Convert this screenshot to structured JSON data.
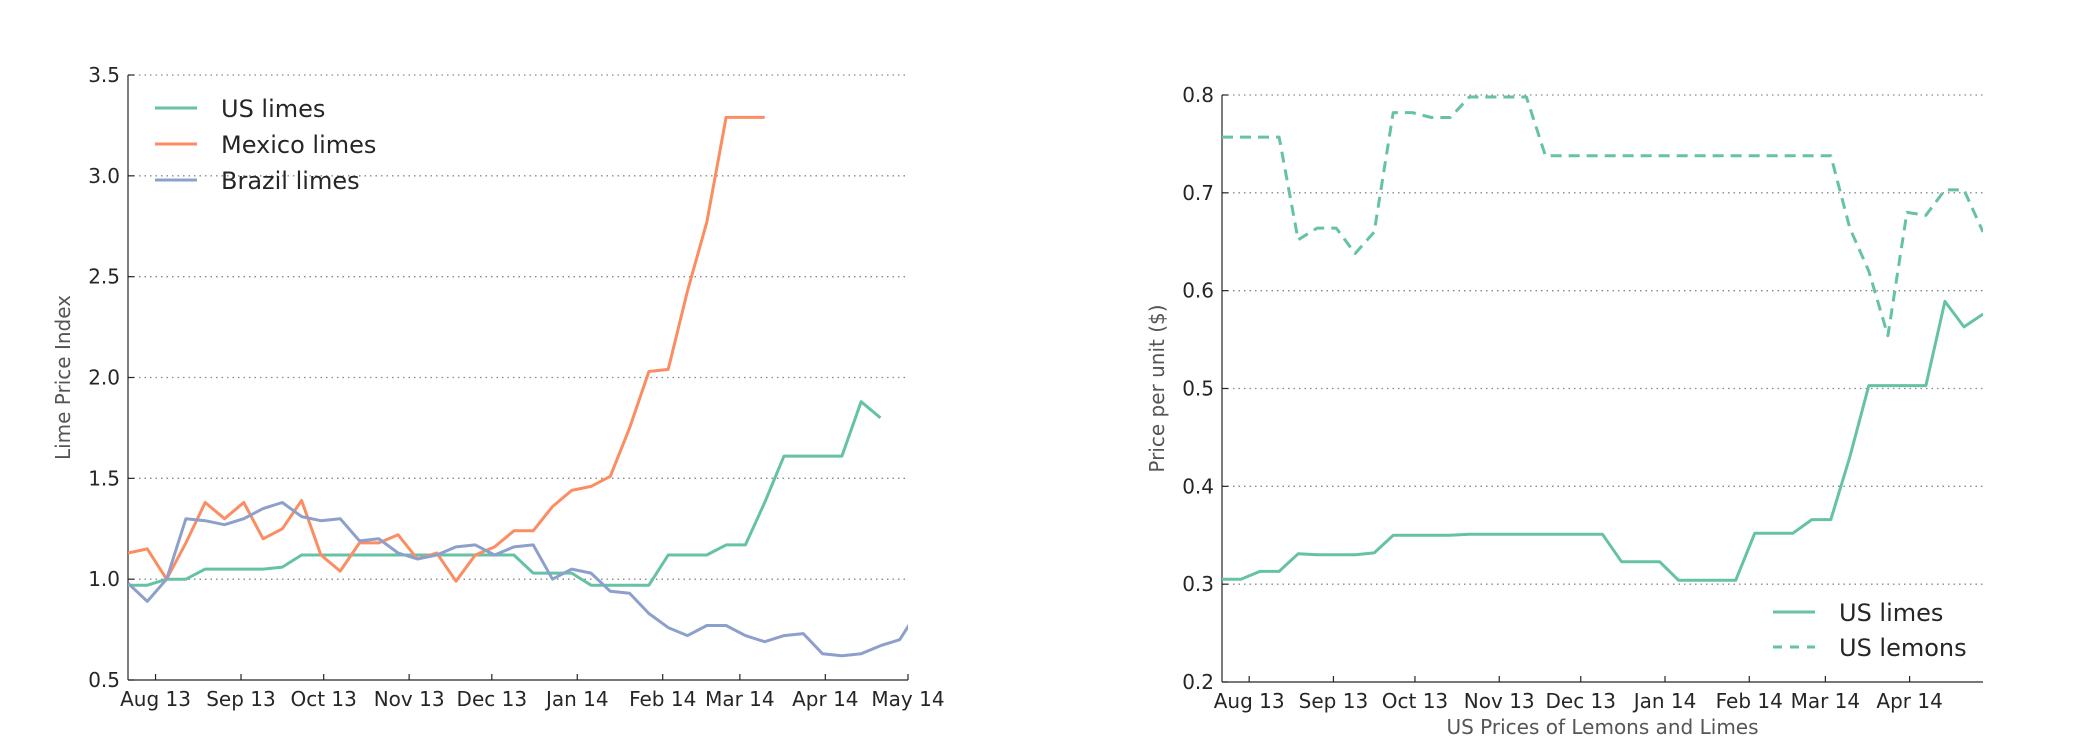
{
  "figure": {
    "background": "#ffffff"
  },
  "colors": {
    "green": "#66c2a5",
    "orange": "#fc8d62",
    "blue": "#8da0cb",
    "grid": "#888888",
    "axis": "#262626"
  },
  "chart_data": [
    {
      "type": "line",
      "title": "",
      "xlabel": "",
      "ylabel": "Lime Price Index",
      "ylim": [
        0.5,
        3.5
      ],
      "yticks": [
        0.5,
        1.0,
        1.5,
        2.0,
        2.5,
        3.0,
        3.5
      ],
      "ytick_labels": [
        "0.5",
        "1.0",
        "1.5",
        "2.0",
        "2.5",
        "3.0",
        "3.5"
      ],
      "xlim": [
        "2013-07-22",
        "2014-05-01"
      ],
      "xticks": [
        "2013-08-01",
        "2013-09-01",
        "2013-10-01",
        "2013-11-01",
        "2013-12-01",
        "2014-01-01",
        "2014-02-01",
        "2014-03-01",
        "2014-04-01",
        "2014-05-01"
      ],
      "xtick_labels": [
        "Aug 13",
        "Sep 13",
        "Oct 13",
        "Nov 13",
        "Dec 13",
        "Jan 14",
        "Feb 14",
        "Mar 14",
        "Apr 14",
        "May 14"
      ],
      "grid": "horizontal-dotted",
      "legend": "top-left",
      "series": [
        {
          "name": "US limes",
          "color": "#66c2a5",
          "dash": "solid",
          "x": [
            "2013-07-22",
            "2013-07-29",
            "2013-08-05",
            "2013-08-12",
            "2013-08-19",
            "2013-08-26",
            "2013-09-02",
            "2013-09-09",
            "2013-09-16",
            "2013-09-23",
            "2013-09-30",
            "2013-10-07",
            "2013-10-14",
            "2013-10-21",
            "2013-10-28",
            "2013-11-04",
            "2013-11-11",
            "2013-11-18",
            "2013-11-25",
            "2013-12-02",
            "2013-12-09",
            "2013-12-16",
            "2013-12-23",
            "2013-12-30",
            "2014-01-06",
            "2014-01-13",
            "2014-01-20",
            "2014-01-27",
            "2014-02-03",
            "2014-02-10",
            "2014-02-17",
            "2014-02-24",
            "2014-03-03",
            "2014-03-10",
            "2014-03-17",
            "2014-03-24",
            "2014-03-31",
            "2014-04-07",
            "2014-04-14",
            "2014-04-21"
          ],
          "y": [
            0.97,
            0.97,
            1.0,
            1.0,
            1.05,
            1.05,
            1.05,
            1.05,
            1.06,
            1.12,
            1.12,
            1.12,
            1.12,
            1.12,
            1.12,
            1.12,
            1.12,
            1.12,
            1.12,
            1.12,
            1.12,
            1.03,
            1.03,
            1.03,
            0.97,
            0.97,
            0.97,
            0.97,
            1.12,
            1.12,
            1.12,
            1.17,
            1.17,
            1.38,
            1.61,
            1.61,
            1.61,
            1.61,
            1.88,
            1.8
          ]
        },
        {
          "name": "Mexico limes",
          "color": "#fc8d62",
          "dash": "solid",
          "x": [
            "2013-07-22",
            "2013-07-29",
            "2013-08-05",
            "2013-08-12",
            "2013-08-19",
            "2013-08-26",
            "2013-09-02",
            "2013-09-09",
            "2013-09-16",
            "2013-09-23",
            "2013-09-30",
            "2013-10-07",
            "2013-10-14",
            "2013-10-21",
            "2013-10-28",
            "2013-11-04",
            "2013-11-11",
            "2013-11-18",
            "2013-11-25",
            "2013-12-02",
            "2013-12-09",
            "2013-12-16",
            "2013-12-23",
            "2013-12-30",
            "2014-01-06",
            "2014-01-13",
            "2014-01-20",
            "2014-01-27",
            "2014-02-03",
            "2014-02-10",
            "2014-02-17",
            "2014-02-24",
            "2014-03-03",
            "2014-03-10"
          ],
          "y": [
            1.13,
            1.15,
            1.0,
            1.18,
            1.38,
            1.3,
            1.38,
            1.2,
            1.25,
            1.39,
            1.12,
            1.04,
            1.18,
            1.18,
            1.22,
            1.1,
            1.13,
            0.99,
            1.12,
            1.16,
            1.24,
            1.24,
            1.36,
            1.44,
            1.46,
            1.51,
            1.75,
            2.03,
            2.04,
            2.43,
            2.77,
            3.29,
            3.29,
            3.29
          ]
        },
        {
          "name": "Brazil limes",
          "color": "#8da0cb",
          "dash": "solid",
          "x": [
            "2013-07-22",
            "2013-07-29",
            "2013-08-05",
            "2013-08-12",
            "2013-08-19",
            "2013-08-26",
            "2013-09-02",
            "2013-09-09",
            "2013-09-16",
            "2013-09-23",
            "2013-09-30",
            "2013-10-07",
            "2013-10-14",
            "2013-10-21",
            "2013-10-28",
            "2013-11-04",
            "2013-11-11",
            "2013-11-18",
            "2013-11-25",
            "2013-12-02",
            "2013-12-09",
            "2013-12-16",
            "2013-12-23",
            "2013-12-30",
            "2014-01-06",
            "2014-01-13",
            "2014-01-20",
            "2014-01-27",
            "2014-02-03",
            "2014-02-10",
            "2014-02-17",
            "2014-02-24",
            "2014-03-03",
            "2014-03-10",
            "2014-03-17",
            "2014-03-24",
            "2014-03-31",
            "2014-04-07",
            "2014-04-14",
            "2014-04-21",
            "2014-04-28",
            "2014-05-05"
          ],
          "y": [
            0.98,
            0.89,
            1.0,
            1.3,
            1.29,
            1.27,
            1.3,
            1.35,
            1.38,
            1.31,
            1.29,
            1.3,
            1.19,
            1.2,
            1.13,
            1.1,
            1.12,
            1.16,
            1.17,
            1.12,
            1.16,
            1.17,
            1.0,
            1.05,
            1.03,
            0.94,
            0.93,
            0.83,
            0.76,
            0.72,
            0.77,
            0.77,
            0.72,
            0.69,
            0.72,
            0.73,
            0.63,
            0.62,
            0.63,
            0.67,
            0.7,
            0.85
          ]
        }
      ]
    },
    {
      "type": "line",
      "title": "",
      "xlabel": "US Prices of Lemons and Limes",
      "ylabel": "Price per unit ($)",
      "ylim": [
        0.2,
        0.8
      ],
      "yticks": [
        0.2,
        0.3,
        0.4,
        0.5,
        0.6,
        0.7,
        0.8
      ],
      "ytick_labels": [
        "0.2",
        "0.3",
        "0.4",
        "0.5",
        "0.6",
        "0.7",
        "0.8"
      ],
      "xlim": [
        "2013-07-22",
        "2014-04-28"
      ],
      "xticks": [
        "2013-08-01",
        "2013-09-01",
        "2013-10-01",
        "2013-11-01",
        "2013-12-01",
        "2014-01-01",
        "2014-02-01",
        "2014-03-01",
        "2014-04-01"
      ],
      "xtick_labels": [
        "Aug 13",
        "Sep 13",
        "Oct 13",
        "Nov 13",
        "Dec 13",
        "Jan 14",
        "Feb 14",
        "Mar 14",
        "Apr 14"
      ],
      "grid": "horizontal-dotted",
      "legend": "bottom-right",
      "series": [
        {
          "name": "US limes",
          "color": "#66c2a5",
          "dash": "solid",
          "x": [
            "2013-07-22",
            "2013-07-29",
            "2013-08-05",
            "2013-08-12",
            "2013-08-19",
            "2013-08-26",
            "2013-09-02",
            "2013-09-09",
            "2013-09-16",
            "2013-09-23",
            "2013-09-30",
            "2013-10-07",
            "2013-10-14",
            "2013-10-21",
            "2013-10-28",
            "2013-11-04",
            "2013-11-11",
            "2013-11-18",
            "2013-11-25",
            "2013-12-02",
            "2013-12-09",
            "2013-12-16",
            "2013-12-23",
            "2013-12-30",
            "2014-01-06",
            "2014-01-13",
            "2014-01-20",
            "2014-01-27",
            "2014-02-03",
            "2014-02-10",
            "2014-02-17",
            "2014-02-24",
            "2014-03-03",
            "2014-03-10",
            "2014-03-17",
            "2014-03-24",
            "2014-03-31",
            "2014-04-07",
            "2014-04-14",
            "2014-04-21",
            "2014-04-28"
          ],
          "y": [
            0.305,
            0.305,
            0.313,
            0.313,
            0.331,
            0.33,
            0.33,
            0.33,
            0.332,
            0.35,
            0.35,
            0.35,
            0.35,
            0.351,
            0.351,
            0.351,
            0.351,
            0.351,
            0.351,
            0.351,
            0.351,
            0.323,
            0.323,
            0.323,
            0.304,
            0.304,
            0.304,
            0.304,
            0.352,
            0.352,
            0.352,
            0.366,
            0.366,
            0.43,
            0.503,
            0.503,
            0.503,
            0.503,
            0.589,
            0.563,
            0.576
          ]
        },
        {
          "name": "US lemons",
          "color": "#66c2a5",
          "dash": "dashed",
          "x": [
            "2013-07-22",
            "2013-07-29",
            "2013-08-05",
            "2013-08-12",
            "2013-08-19",
            "2013-08-26",
            "2013-09-02",
            "2013-09-09",
            "2013-09-16",
            "2013-09-23",
            "2013-09-30",
            "2013-10-07",
            "2013-10-14",
            "2013-10-21",
            "2013-10-28",
            "2013-11-04",
            "2013-11-11",
            "2013-11-18",
            "2013-11-25",
            "2013-12-02",
            "2013-12-09",
            "2013-12-16",
            "2013-12-23",
            "2013-12-30",
            "2014-01-06",
            "2014-01-13",
            "2014-01-20",
            "2014-01-27",
            "2014-02-03",
            "2014-02-10",
            "2014-02-17",
            "2014-02-24",
            "2014-03-03",
            "2014-03-10",
            "2014-03-17",
            "2014-03-24",
            "2014-03-31",
            "2014-04-07",
            "2014-04-14",
            "2014-04-21",
            "2014-04-28"
          ],
          "y": [
            0.757,
            0.757,
            0.757,
            0.757,
            0.652,
            0.664,
            0.664,
            0.638,
            0.66,
            0.782,
            0.782,
            0.777,
            0.777,
            0.798,
            0.798,
            0.798,
            0.798,
            0.738,
            0.738,
            0.738,
            0.738,
            0.738,
            0.738,
            0.738,
            0.738,
            0.738,
            0.738,
            0.738,
            0.738,
            0.738,
            0.738,
            0.738,
            0.738,
            0.664,
            0.62,
            0.554,
            0.68,
            0.677,
            0.703,
            0.703,
            0.66
          ]
        }
      ]
    }
  ]
}
